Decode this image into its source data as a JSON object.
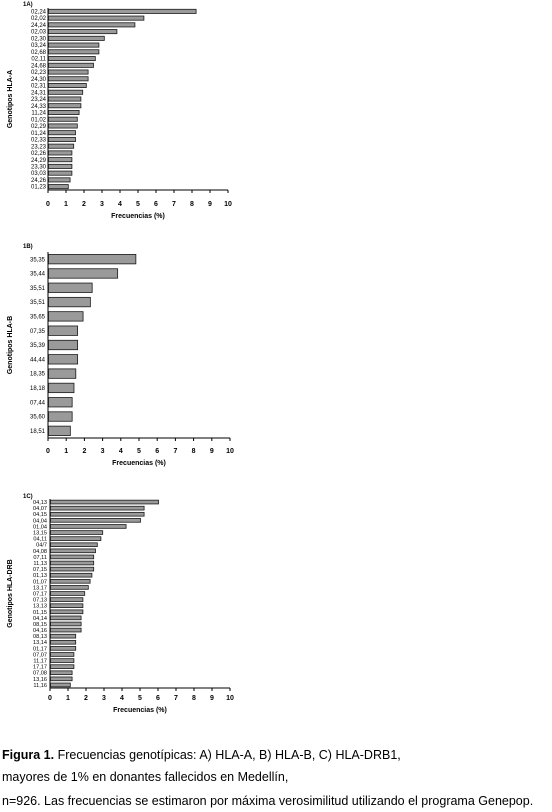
{
  "chart_data": [
    {
      "type": "bar",
      "orientation": "horizontal",
      "panel_label": "1A)",
      "ylabel": "Genotipos HLA-A",
      "xlabel": "Frecuencias (%)",
      "xlim": [
        0,
        10
      ],
      "xticks": [
        0,
        1,
        2,
        3,
        4,
        5,
        6,
        7,
        8,
        9,
        10
      ],
      "categories": [
        "02,24",
        "02,02",
        "24,24",
        "02,03",
        "02,30",
        "03,24",
        "02,68",
        "02,11",
        "24,68",
        "02,23",
        "24,30",
        "02,31",
        "24,31",
        "23,24",
        "24,33",
        "11,24",
        "01,02",
        "02,29",
        "01,24",
        "02,33",
        "23,23",
        "02,26",
        "24,29",
        "23,30",
        "03,03",
        "24,26",
        "01,23"
      ],
      "values": [
        8.2,
        5.3,
        4.8,
        3.8,
        3.1,
        2.8,
        2.8,
        2.6,
        2.5,
        2.2,
        2.2,
        2.1,
        1.9,
        1.8,
        1.8,
        1.7,
        1.6,
        1.6,
        1.5,
        1.5,
        1.4,
        1.3,
        1.3,
        1.3,
        1.3,
        1.2,
        1.1
      ]
    },
    {
      "type": "bar",
      "orientation": "horizontal",
      "panel_label": "1B)",
      "ylabel": "Genotipos HLA-B",
      "xlabel": "Frecuencias (%)",
      "xlim": [
        0,
        10
      ],
      "xticks": [
        0,
        1,
        2,
        3,
        4,
        5,
        6,
        7,
        8,
        9,
        10
      ],
      "categories": [
        "35,35",
        "35,44",
        "35,51",
        "35,51",
        "35,65",
        "07,35",
        "35,39",
        "44,44",
        "18,35",
        "18,18",
        "07,44",
        "35,60",
        "18,51"
      ],
      "values": [
        4.8,
        3.8,
        2.4,
        2.3,
        1.9,
        1.6,
        1.6,
        1.6,
        1.5,
        1.4,
        1.3,
        1.3,
        1.2
      ]
    },
    {
      "type": "bar",
      "orientation": "horizontal",
      "panel_label": "1C)",
      "ylabel": "Genotipos HLA-DRB",
      "xlabel": "Frecuencias (%)",
      "xlim": [
        0,
        10
      ],
      "xticks": [
        0,
        1,
        2,
        3,
        4,
        5,
        6,
        7,
        8,
        9,
        10
      ],
      "categories": [
        "04,13",
        "04,07",
        "04,15",
        "04,04",
        "01,04",
        "13,15",
        "04,11",
        "04/7",
        "04,08",
        "07,11",
        "11,13",
        "07,15",
        "01,13",
        "01,07",
        "13,17",
        "07,17",
        "07,13",
        "13,13",
        "01,15",
        "04,14",
        "08,15",
        "04,16",
        "08,13",
        "13,14",
        "01,17",
        "07,07",
        "11,17",
        "17,17",
        "07,08",
        "13,16",
        "11,16"
      ],
      "values": [
        6.0,
        5.2,
        5.2,
        5.0,
        4.2,
        2.9,
        2.8,
        2.6,
        2.5,
        2.4,
        2.4,
        2.4,
        2.3,
        2.2,
        2.1,
        1.9,
        1.8,
        1.8,
        1.8,
        1.7,
        1.7,
        1.7,
        1.4,
        1.4,
        1.4,
        1.3,
        1.3,
        1.3,
        1.2,
        1.2,
        1.1
      ]
    }
  ],
  "caption": {
    "figure_label": "Figura 1.",
    "line1": " Frecuencias genotípicas: A) HLA-A, B) HLA-B, C) HLA-DRB1,",
    "line2": "mayores de 1% en donantes fallecidos en Medellín,",
    "line3": "n=926. Las frecuencias se estimaron por máxima verosimilitud utilizando el programa Genepop."
  },
  "colors": {
    "bar_fill": "#9a9a9a",
    "bar_stroke": "#1a1a1a",
    "axis": "#000000"
  }
}
